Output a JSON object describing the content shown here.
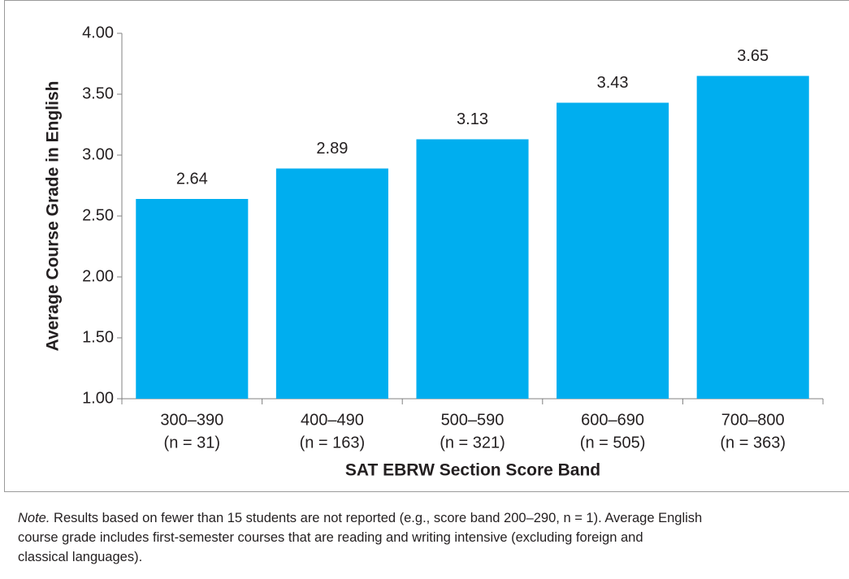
{
  "chart_data": {
    "type": "bar",
    "categories": [
      "300–390",
      "400–490",
      "500–590",
      "600–690",
      "700–800"
    ],
    "sample_labels": [
      "(n = 31)",
      "(n = 163)",
      "(n = 321)",
      "(n = 505)",
      "(n = 363)"
    ],
    "values": [
      2.64,
      2.89,
      3.13,
      3.43,
      3.65
    ],
    "color": "#00aeef",
    "ylim": [
      1,
      4
    ],
    "yticks": [
      {
        "value": 1,
        "label": "1.00"
      },
      {
        "value": 1.5,
        "label": "1.50"
      },
      {
        "value": 2,
        "label": "2.00"
      },
      {
        "value": 2.5,
        "label": "2.50"
      },
      {
        "value": 3,
        "label": "3.00"
      },
      {
        "value": 3.5,
        "label": "3.50"
      },
      {
        "value": 4,
        "label": "4.00"
      }
    ],
    "ylabel": "Average Course Grade in English",
    "xlabel": "SAT EBRW Section Score Band",
    "grid": false
  },
  "note": {
    "label": "Note.",
    "lines": [
      "Results based on fewer than 15 students are not reported (e.g., score band 200–290, n = 1). Average English",
      "course grade includes first-semester courses that are reading and writing intensive (excluding foreign and",
      "classical languages)."
    ]
  }
}
